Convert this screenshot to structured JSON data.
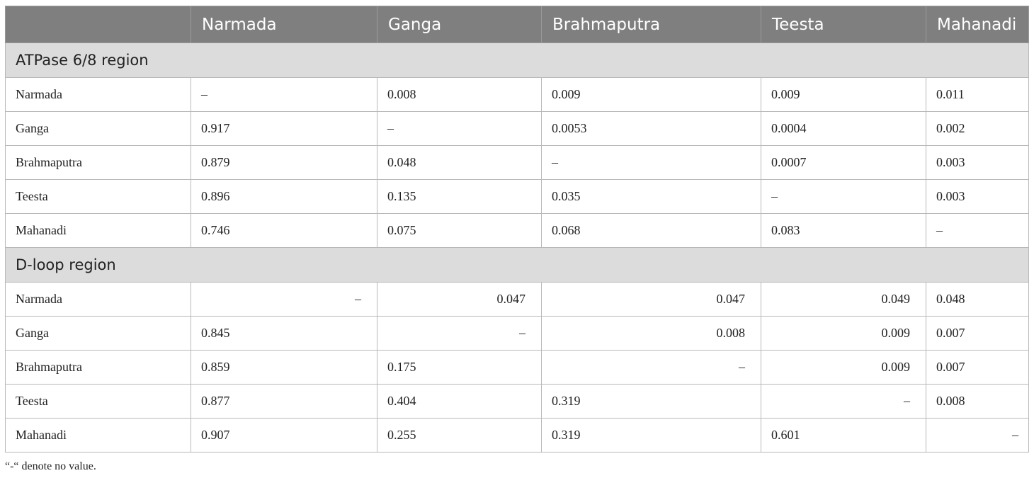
{
  "table": {
    "headers": [
      "",
      "Narmada",
      "Ganga",
      "Brahmaputra",
      "Teesta",
      "Mahanadi"
    ],
    "sections": [
      {
        "title": "ATPase 6/8 region",
        "rows": [
          [
            "Narmada",
            "–",
            "0.008",
            "0.009",
            "0.009",
            "0.011"
          ],
          [
            "Ganga",
            "0.917",
            "–",
            "0.0053",
            "0.0004",
            "0.002"
          ],
          [
            "Brahmaputra",
            "0.879",
            "0.048",
            "–",
            "0.0007",
            "0.003"
          ],
          [
            "Teesta",
            "0.896",
            "0.135",
            "0.035",
            "–",
            "0.003"
          ],
          [
            "Mahanadi",
            "0.746",
            "0.075",
            "0.068",
            "0.083",
            "–"
          ]
        ]
      },
      {
        "title": "D-loop region",
        "rows": [
          [
            "Narmada",
            "–",
            "0.047",
            "0.047",
            "0.049",
            "0.048"
          ],
          [
            "Ganga",
            "0.845",
            "–",
            "0.008",
            "0.009",
            "0.007"
          ],
          [
            "Brahmaputra",
            "0.859",
            "0.175",
            "–",
            "0.009",
            "0.007"
          ],
          [
            "Teesta",
            "0.877",
            "0.404",
            "0.319",
            "–",
            "0.008"
          ],
          [
            "Mahanadi",
            "0.907",
            "0.255",
            "0.319",
            "0.601",
            "–"
          ]
        ]
      }
    ]
  },
  "footnote": "“-“ denote no value."
}
